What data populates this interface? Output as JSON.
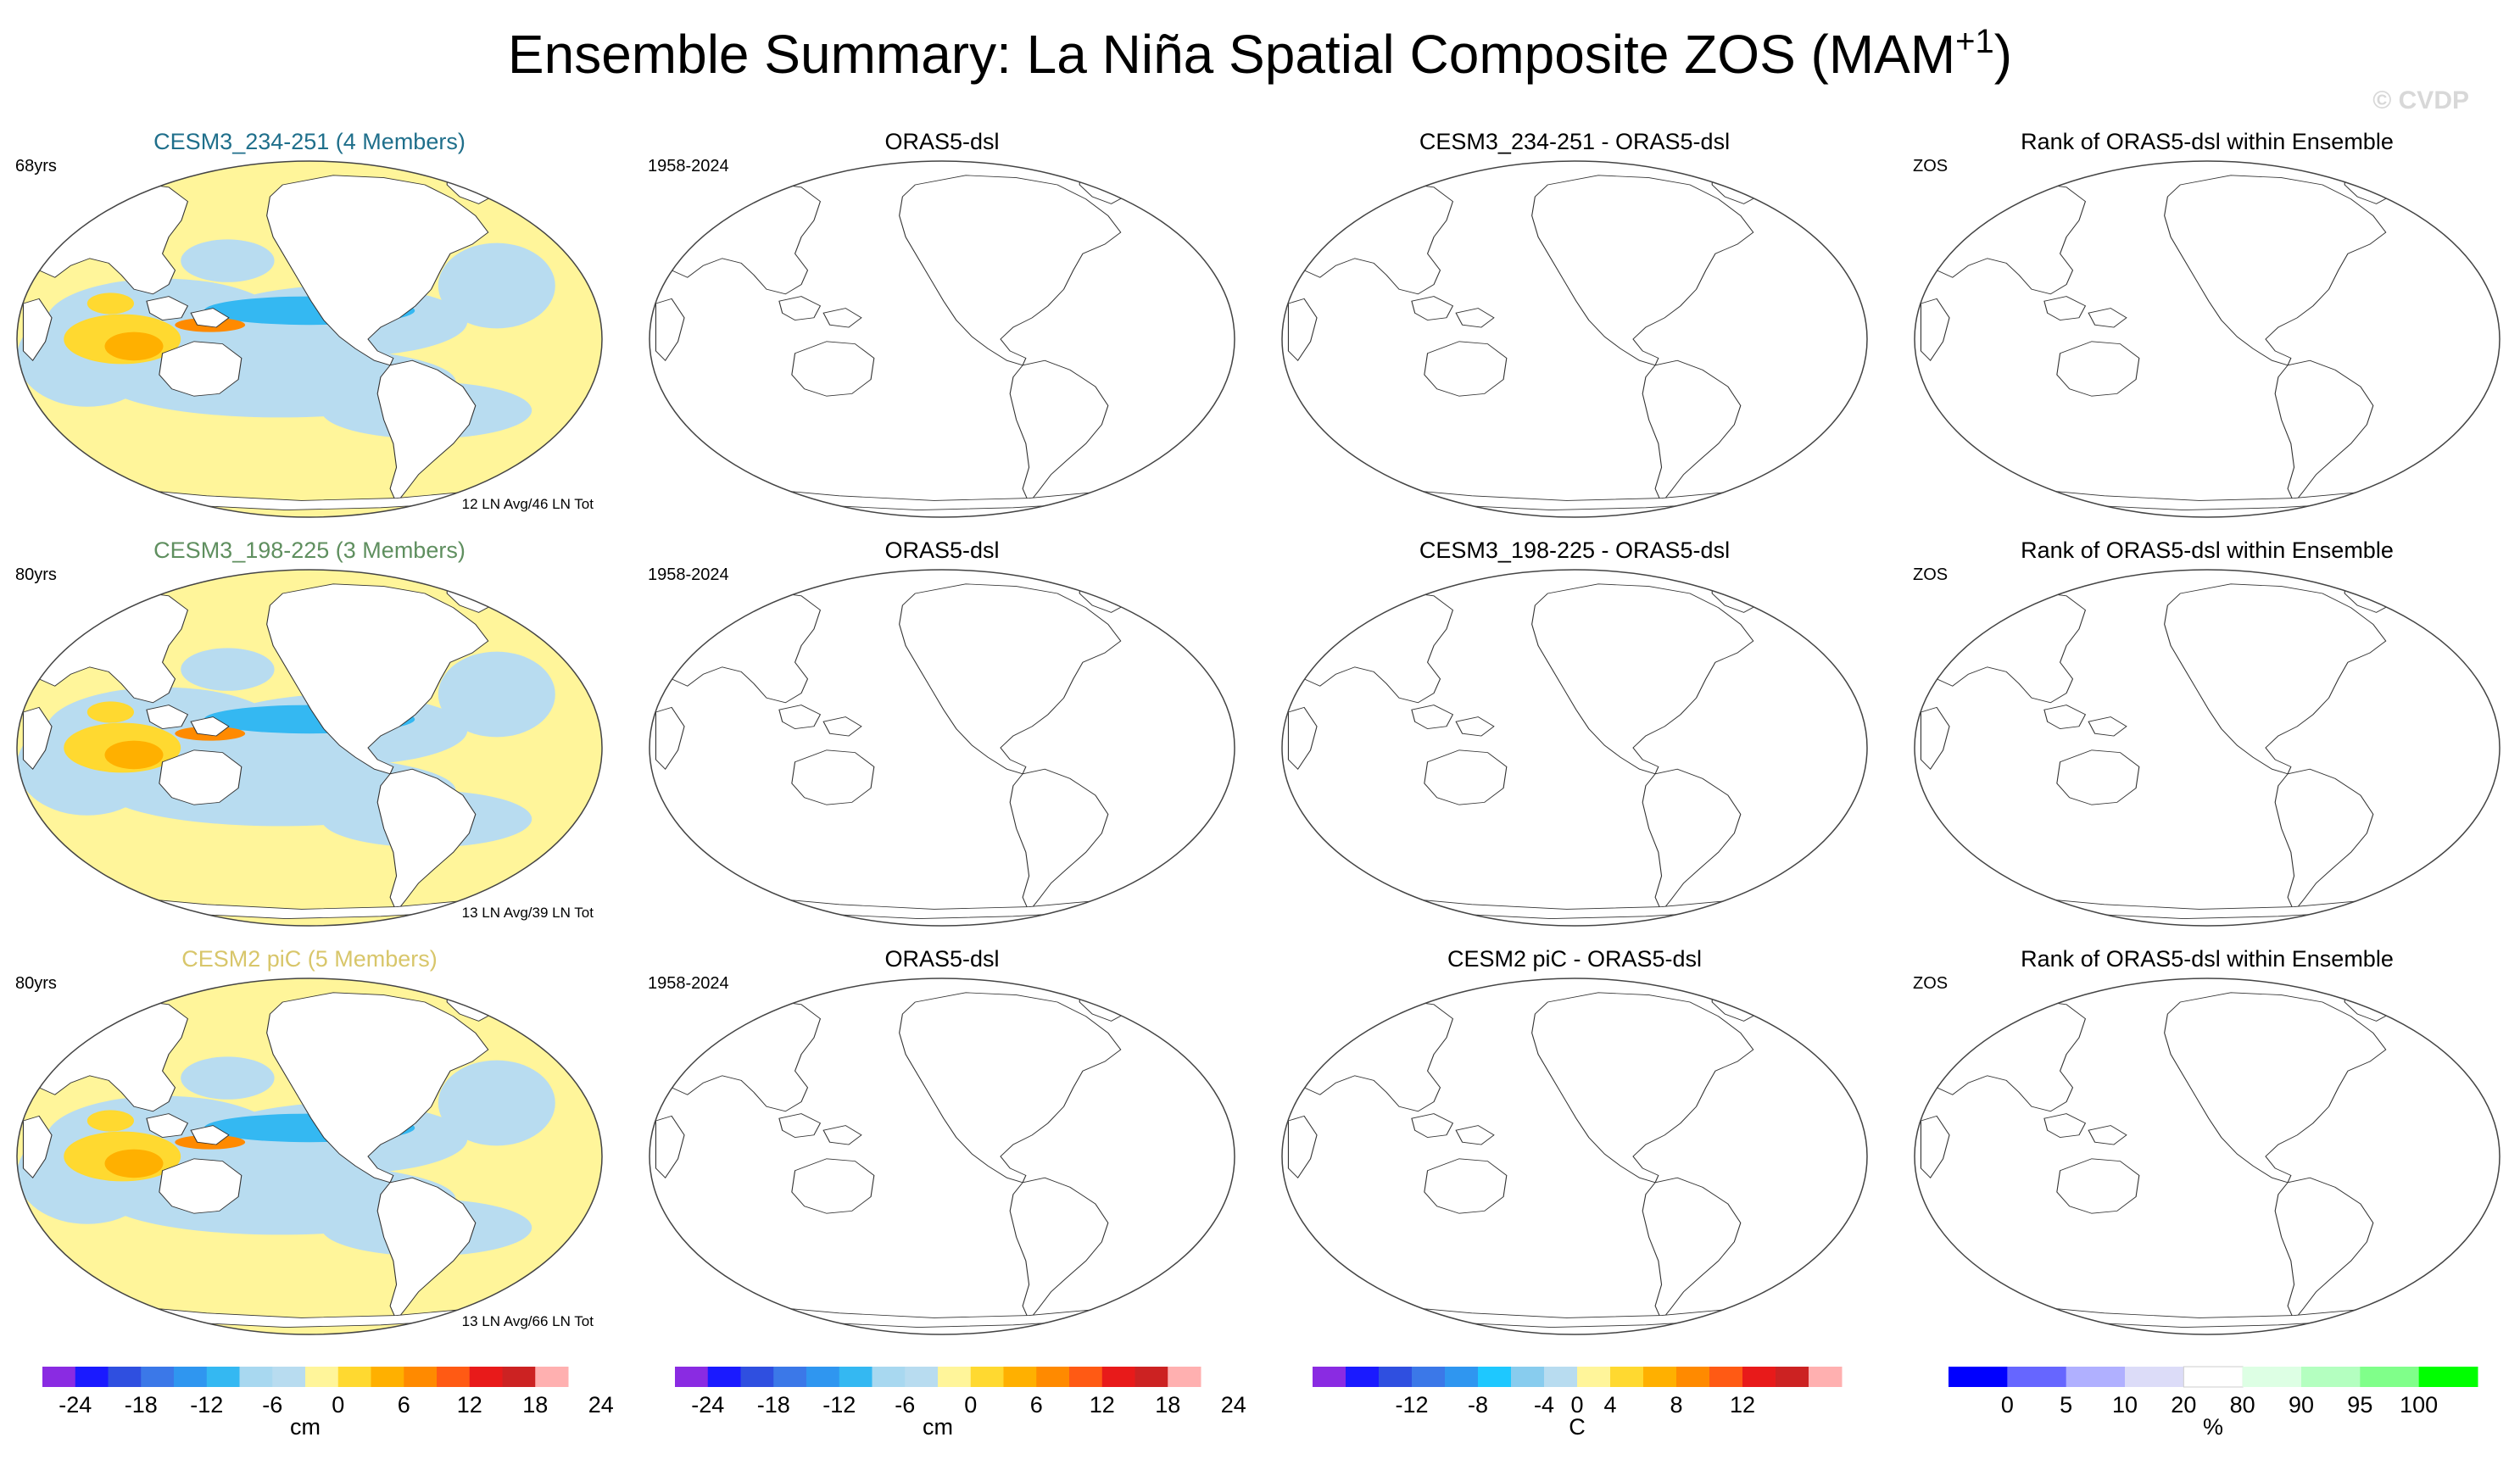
{
  "title": {
    "main": "Ensemble Summary: La Niña Spatial Composite ZOS (MAM",
    "sup": "+1",
    "close": ")"
  },
  "watermark": "© CVDP",
  "colors": {
    "land": "#ffffff",
    "outline": "#333333",
    "ensemble_titles": [
      "#1f6f8b",
      "#5f8f5f",
      "#d8c66a"
    ]
  },
  "rows": [
    {
      "ensemble": {
        "title": "CESM3_234-251 (4 Members)",
        "left": "68yrs",
        "footer": "12 LN Avg/46 LN Tot"
      },
      "obs": {
        "title": "ORAS5-dsl",
        "left": "1958-2024"
      },
      "diff": {
        "title": "CESM3_234-251 - ORAS5-dsl"
      },
      "rank": {
        "title": "Rank of ORAS5-dsl within Ensemble",
        "left": "ZOS"
      }
    },
    {
      "ensemble": {
        "title": "CESM3_198-225 (3 Members)",
        "left": "80yrs",
        "footer": "13 LN Avg/39 LN Tot"
      },
      "obs": {
        "title": "ORAS5-dsl",
        "left": "1958-2024"
      },
      "diff": {
        "title": "CESM3_198-225 - ORAS5-dsl"
      },
      "rank": {
        "title": "Rank of ORAS5-dsl within Ensemble",
        "left": "ZOS"
      }
    },
    {
      "ensemble": {
        "title": "CESM2 piC (5 Members)",
        "left": "80yrs",
        "footer": "13 LN Avg/66 LN Tot"
      },
      "obs": {
        "title": "ORAS5-dsl",
        "left": "1958-2024"
      },
      "diff": {
        "title": "CESM2 piC - ORAS5-dsl"
      },
      "rank": {
        "title": "Rank of ORAS5-dsl within Ensemble",
        "left": "ZOS"
      }
    }
  ],
  "chart_data": [
    {
      "type": "heatmap",
      "projection": "Robinson (Pacific-centered)",
      "panel": "ensemble",
      "variable": "ZOS composite",
      "units": "cm",
      "colorbar": {
        "colors": [
          "#8a2be2",
          "#1a1aff",
          "#2f4fe0",
          "#3b78e8",
          "#2f96f0",
          "#34b8f2",
          "#a8d8f0",
          "#b8dcf0",
          "#fff59a",
          "#ffd930",
          "#ffb000",
          "#ff8a00",
          "#ff5a14",
          "#e81a1a",
          "#cc2222",
          "#ffb0b0"
        ],
        "tick_labels": [
          "-24",
          "-18",
          "-12",
          "-6",
          "0",
          "6",
          "12",
          "18",
          "24"
        ],
        "label": "cm"
      }
    },
    {
      "type": "heatmap",
      "projection": "Robinson (Pacific-centered)",
      "panel": "observations",
      "units": "cm",
      "colorbar": {
        "colors": [
          "#8a2be2",
          "#1a1aff",
          "#2f4fe0",
          "#3b78e8",
          "#2f96f0",
          "#34b8f2",
          "#a8d8f0",
          "#b8dcf0",
          "#fff59a",
          "#ffd930",
          "#ffb000",
          "#ff8a00",
          "#ff5a14",
          "#e81a1a",
          "#cc2222",
          "#ffb0b0"
        ],
        "tick_labels": [
          "-24",
          "-18",
          "-12",
          "-6",
          "0",
          "6",
          "12",
          "18",
          "24"
        ],
        "label": "cm"
      }
    },
    {
      "type": "heatmap",
      "projection": "Robinson (Pacific-centered)",
      "panel": "difference",
      "units": "C",
      "colorbar": {
        "colors": [
          "#8a2be2",
          "#1a1aff",
          "#2f4fe0",
          "#3b78e8",
          "#2f96f0",
          "#1ec8ff",
          "#88ccee",
          "#b8dcf0",
          "#fff59a",
          "#ffd930",
          "#ffb000",
          "#ff8a00",
          "#ff5a14",
          "#e81a1a",
          "#cc2222",
          "#ffb0b0"
        ],
        "tick_labels": [
          "-12",
          "-8",
          "-4",
          "0",
          "4",
          "8",
          "12"
        ],
        "label": "C"
      }
    },
    {
      "type": "heatmap",
      "projection": "Robinson (Pacific-centered)",
      "panel": "rank",
      "units": "%",
      "colorbar": {
        "colors": [
          "#0000ff",
          "#6666ff",
          "#b0b0ff",
          "#dcdcf8",
          "#ffffff",
          "#ddffe4",
          "#b4ffc0",
          "#80ff8a",
          "#00ff00"
        ],
        "tick_labels": [
          "0",
          "5",
          "10",
          "20",
          "80",
          "90",
          "95",
          "100"
        ],
        "label": "%"
      }
    }
  ]
}
